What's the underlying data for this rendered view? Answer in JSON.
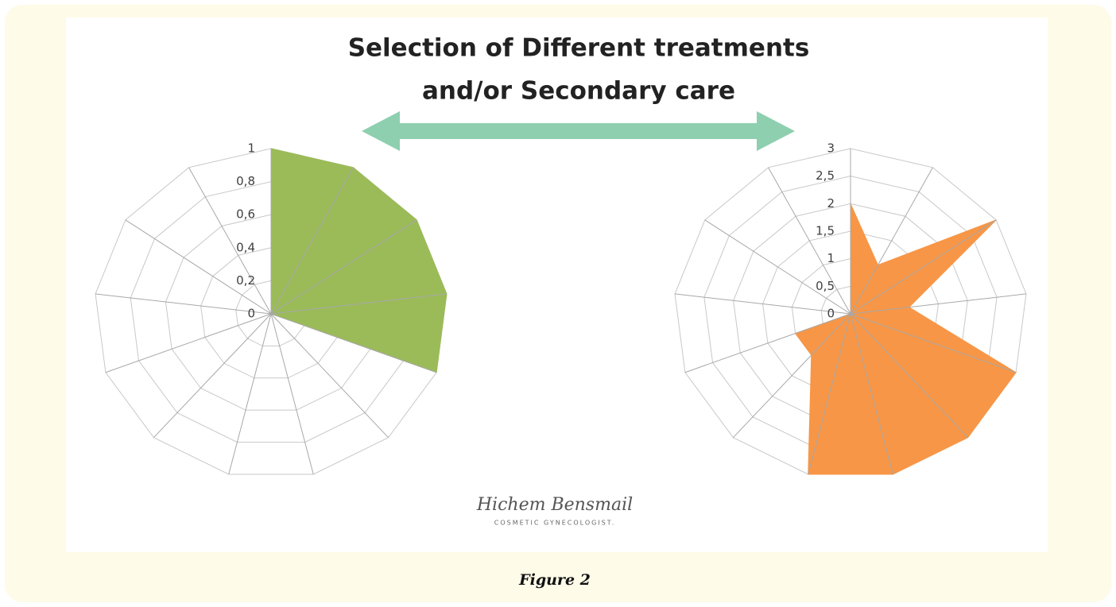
{
  "title_lines": [
    "Selection of Different treatments",
    "and/or Secondary care"
  ],
  "chart_data": [
    {
      "type": "radar",
      "values": [
        1,
        1,
        1,
        1,
        1,
        0,
        0,
        0,
        0,
        0,
        0,
        0,
        0
      ],
      "color": "#9bbb59",
      "ylim": [
        0,
        1
      ],
      "yticks": [
        0,
        {
          "value": 0.2,
          "label": "0,2"
        },
        {
          "value": 0.4,
          "label": "0,4"
        },
        {
          "value": 0.6,
          "label": "0,6"
        },
        {
          "value": 0.8,
          "label": "0,8"
        },
        1
      ]
    },
    {
      "type": "radar",
      "values": [
        2,
        1,
        3,
        1,
        3,
        3,
        3,
        3,
        1,
        1,
        0,
        0,
        0
      ],
      "color": "#f79646",
      "ylim": [
        0,
        3
      ],
      "yticks": [
        0,
        {
          "value": 0.5,
          "label": "0,5"
        },
        1,
        {
          "value": 1.5,
          "label": "1,5"
        },
        2,
        {
          "value": 2.5,
          "label": "2,5"
        },
        3
      ]
    }
  ],
  "logo": {
    "name": "Hichem Bensmail",
    "tagline": "COSMETIC GYNECOLOGIST."
  },
  "caption": "Figure 2"
}
